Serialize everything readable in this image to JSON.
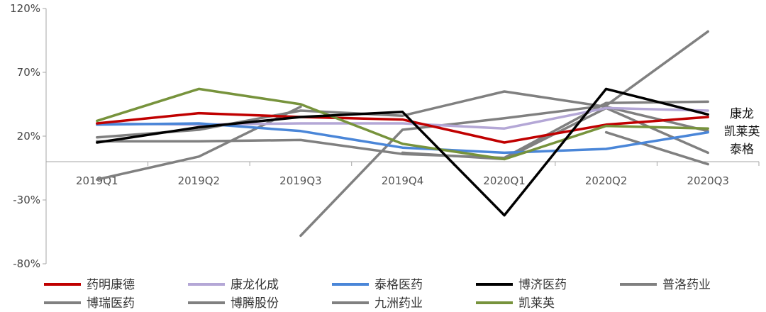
{
  "chart_data": {
    "type": "line",
    "title": "",
    "xlabel": "",
    "ylabel": "",
    "ylim": [
      -80,
      120
    ],
    "yticks": [
      "120%",
      "70%",
      "20%",
      "-30%",
      "-80%"
    ],
    "ytick_values": [
      120,
      70,
      20,
      -30,
      -80
    ],
    "categories": [
      "2019Q1",
      "2019Q2",
      "2019Q3",
      "2019Q4",
      "2020Q1",
      "2020Q2",
      "2020Q3"
    ],
    "series": [
      {
        "name": "药明康德",
        "color": "#C00000",
        "values": [
          30,
          38,
          35,
          33,
          15,
          29,
          35
        ]
      },
      {
        "name": "康龙化成",
        "color": "#B4A7D6",
        "values": [
          30,
          29,
          30,
          30,
          26,
          42,
          40
        ]
      },
      {
        "name": "泰格医药",
        "color": "#4A86D8",
        "values": [
          29,
          30,
          24,
          11,
          7,
          10,
          23
        ]
      },
      {
        "name": "博济医药",
        "color": "#000000",
        "values": [
          15,
          27,
          35,
          39,
          -42,
          57,
          37
        ]
      },
      {
        "name": "普洛药业",
        "color": "#808080",
        "values": [
          -14,
          4,
          43,
          null,
          null,
          null,
          null
        ]
      },
      {
        "name": "博瑞医药",
        "color": "#808080",
        "values": [
          null,
          null,
          -58,
          25,
          34,
          44,
          102
        ]
      },
      {
        "name": "博腾股份",
        "color": "#808080",
        "values": [
          16,
          16,
          17,
          6,
          3,
          46,
          47
        ]
      },
      {
        "name": "九洲药业",
        "color": "#808080",
        "values": [
          19,
          25,
          40,
          36,
          55,
          43,
          24
        ]
      },
      {
        "name": "凯莱英",
        "color": "#77933C",
        "values": [
          32,
          57,
          45,
          14,
          2,
          28,
          26
        ]
      },
      {
        "name": "",
        "color": "#808080",
        "values": [
          null,
          null,
          null,
          7,
          2,
          42,
          7
        ]
      },
      {
        "name": "",
        "color": "#808080",
        "values": [
          null,
          null,
          null,
          null,
          null,
          23,
          -2
        ]
      }
    ],
    "side_labels": [
      "康龙",
      "凯莱英",
      "泰格"
    ],
    "legend": {
      "position": "bottom",
      "entries": [
        {
          "label": "药明康德",
          "color": "#C00000"
        },
        {
          "label": "康龙化成",
          "color": "#B4A7D6"
        },
        {
          "label": "泰格医药",
          "color": "#4A86D8"
        },
        {
          "label": "博济医药",
          "color": "#000000"
        },
        {
          "label": "普洛药业",
          "color": "#808080"
        },
        {
          "label": "博瑞医药",
          "color": "#808080"
        },
        {
          "label": "博腾股份",
          "color": "#808080"
        },
        {
          "label": "九洲药业",
          "color": "#808080"
        },
        {
          "label": "凯莱英",
          "color": "#77933C"
        }
      ]
    },
    "grid": false
  }
}
